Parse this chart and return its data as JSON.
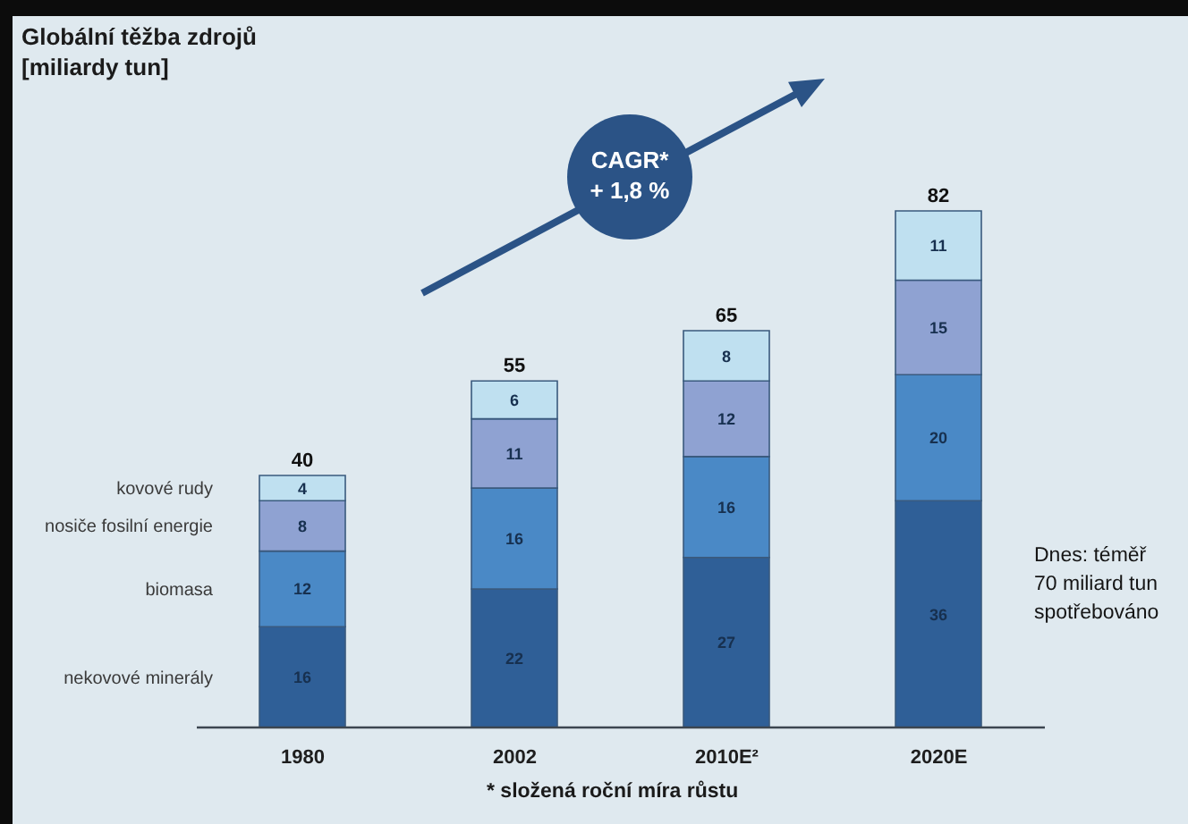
{
  "chart_data": {
    "type": "bar",
    "title": "Globální těžba zdrojů",
    "subtitle": "[miliardy tun]",
    "categories": [
      "1980",
      "2002",
      "2010E²",
      "2020E"
    ],
    "stacked": true,
    "series": [
      {
        "name": "nekovové minerály",
        "color": "#2f5f97",
        "values": [
          16,
          22,
          27,
          36
        ]
      },
      {
        "name": "biomasa",
        "color": "#4a89c6",
        "values": [
          12,
          16,
          16,
          20
        ]
      },
      {
        "name": "nosiče fosilní energie",
        "color": "#8fa2d2",
        "values": [
          8,
          11,
          12,
          15
        ]
      },
      {
        "name": "kovové rudy",
        "color": "#bfe0f0",
        "values": [
          4,
          6,
          8,
          11
        ]
      }
    ],
    "data_labels": true,
    "totals": [
      "40",
      "55",
      "65",
      "82"
    ],
    "legend": "left",
    "annotations": [
      "CAGR*\n+ 1,8 %",
      "Dnes: téměř\n70 miliard tun\nspotřebováno",
      "* složená roční míra růstu"
    ]
  }
}
